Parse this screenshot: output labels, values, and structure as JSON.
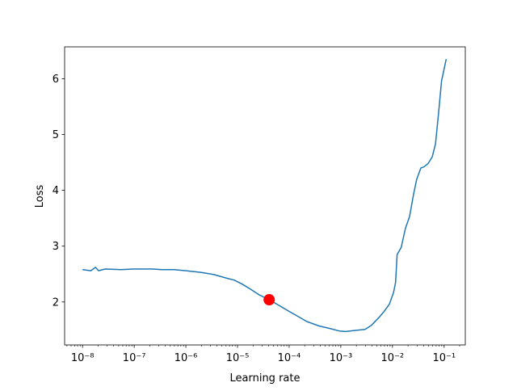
{
  "chart_data": {
    "type": "line",
    "title": "",
    "xlabel": "Learning rate",
    "ylabel": "Loss",
    "xscale": "log",
    "xlim": [
      4.5e-09,
      0.257
    ],
    "ylim": [
      1.23,
      6.57
    ],
    "grid": false,
    "x_ticks": [
      1e-08,
      1e-07,
      1e-06,
      1e-05,
      0.0001,
      0.001,
      0.01,
      0.1
    ],
    "x_tick_labels": [
      "10⁻⁸",
      "10⁻⁷",
      "10⁻⁶",
      "10⁻⁵",
      "10⁻⁴",
      "10⁻³",
      "10⁻²",
      "10⁻¹"
    ],
    "y_ticks": [
      2,
      3,
      4,
      5,
      6
    ],
    "y_tick_labels": [
      "2",
      "3",
      "4",
      "5",
      "6"
    ],
    "line_color": "#1f77b4",
    "marker_color": "#ff0000",
    "series": [
      {
        "x": [
          1e-08,
          1.45e-08,
          1.78e-08,
          2.04e-08,
          2.75e-08,
          5.6e-08,
          9.5e-08,
          2.3e-07,
          3.4e-07,
          5.9e-07,
          1e-06,
          2e-06,
          3.5e-06,
          6e-06,
          8.7e-06,
          1.23e-05,
          1.78e-05,
          2.6e-05,
          4.1e-05,
          6.3e-05,
          0.0001,
          0.000155,
          0.00022,
          0.00038,
          0.00065,
          0.00093,
          0.00123,
          0.0019,
          0.00295,
          0.0039,
          0.0056,
          0.0069,
          0.0087,
          0.0105,
          0.0115,
          0.0123,
          0.0148,
          0.0178,
          0.0214,
          0.0257,
          0.0295,
          0.0355,
          0.0407,
          0.049,
          0.059,
          0.068,
          0.078,
          0.089,
          0.11
        ],
        "y": [
          2.58,
          2.56,
          2.62,
          2.56,
          2.59,
          2.58,
          2.59,
          2.59,
          2.58,
          2.58,
          2.56,
          2.53,
          2.49,
          2.43,
          2.39,
          2.32,
          2.23,
          2.13,
          2.04,
          1.94,
          1.83,
          1.73,
          1.65,
          1.57,
          1.52,
          1.48,
          1.47,
          1.49,
          1.51,
          1.58,
          1.73,
          1.83,
          1.96,
          2.17,
          2.35,
          2.85,
          2.98,
          3.32,
          3.53,
          3.94,
          4.2,
          4.4,
          4.42,
          4.48,
          4.6,
          4.83,
          5.38,
          5.96,
          6.35
        ]
      }
    ],
    "marker": {
      "x": 4.1e-05,
      "y": 2.04
    }
  }
}
